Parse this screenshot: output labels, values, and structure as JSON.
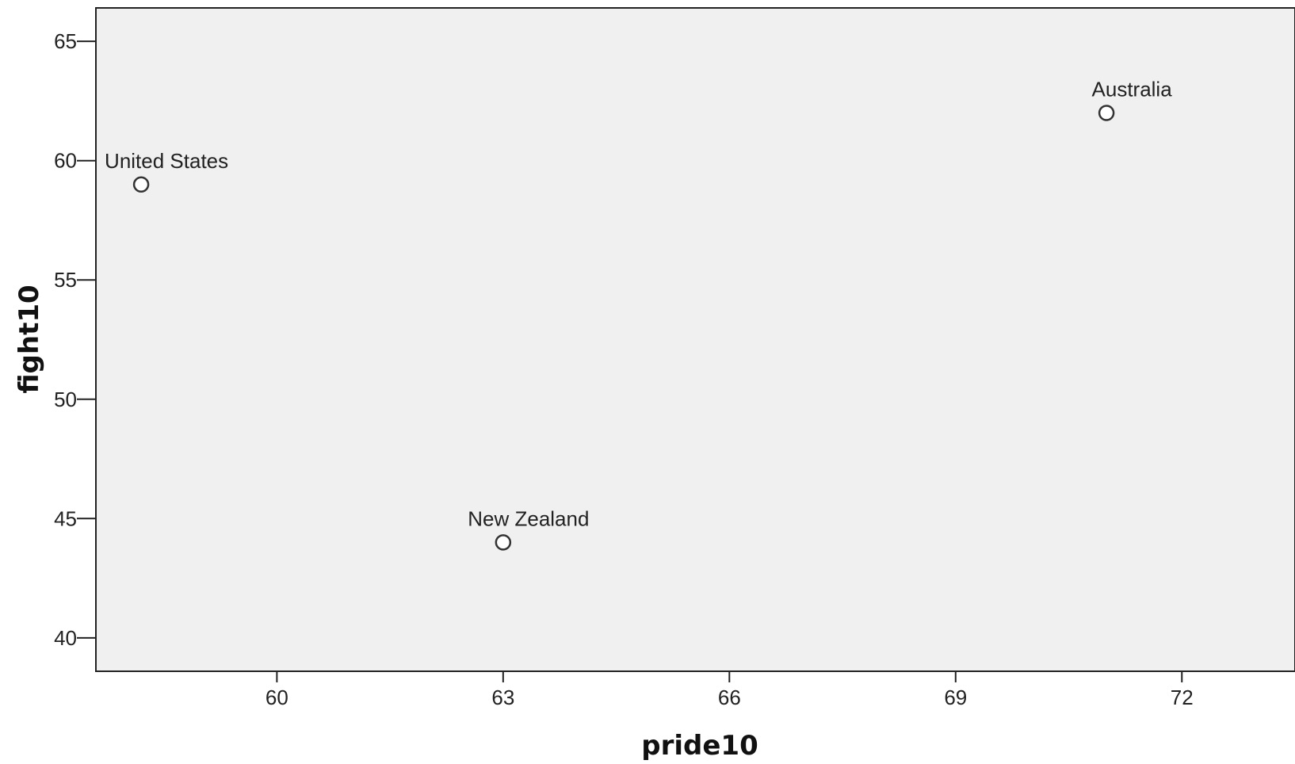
{
  "chart_data": {
    "type": "scatter",
    "xlabel": "pride10",
    "ylabel": "fight10",
    "xlim": [
      57.6,
      73.5
    ],
    "ylim": [
      38.6,
      66.4
    ],
    "xticks": [
      60,
      63,
      66,
      69,
      72
    ],
    "yticks": [
      40,
      45,
      50,
      55,
      60,
      65
    ],
    "grid": false,
    "legend": "none",
    "colors": {
      "plot_background": "#f0f0f0",
      "frame": "#222222",
      "marker_stroke": "#333333",
      "marker_fill": "#ffffff"
    },
    "points": [
      {
        "label": "United States",
        "x": 58.2,
        "y": 59
      },
      {
        "label": "New Zealand",
        "x": 63,
        "y": 44
      },
      {
        "label": "Australia",
        "x": 71,
        "y": 62
      }
    ]
  }
}
